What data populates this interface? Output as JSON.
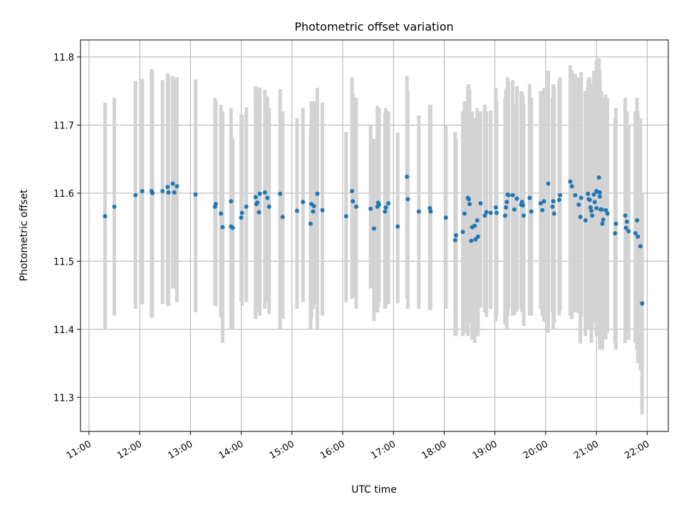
{
  "chart_data": {
    "type": "scatter",
    "title": "Photometric offset variation",
    "xlabel": "UTC time",
    "ylabel": "Photometric offset",
    "xlim": [
      "10:50",
      "22:25"
    ],
    "ylim": [
      11.25,
      11.825
    ],
    "x_ticks": [
      "11:00",
      "12:00",
      "13:00",
      "14:00",
      "15:00",
      "16:00",
      "17:00",
      "18:00",
      "19:00",
      "20:00",
      "21:00",
      "22:00"
    ],
    "y_ticks": [
      "11.3",
      "11.4",
      "11.5",
      "11.6",
      "11.7",
      "11.8"
    ],
    "grid": true,
    "colors": {
      "marker": "#1f77b4",
      "errorbar": "#d3d3d3",
      "grid": "#b0b0b0"
    },
    "x": [
      "11:19",
      "11:30",
      "11:55",
      "12:03",
      "12:14",
      "12:15",
      "12:27",
      "12:33",
      "12:34",
      "12:39",
      "12:41",
      "12:44",
      "13:06",
      "13:29",
      "13:30",
      "13:36",
      "13:38",
      "13:48",
      "13:48",
      "13:50",
      "14:00",
      "14:01",
      "14:06",
      "14:17",
      "14:18",
      "14:19",
      "14:21",
      "14:22",
      "14:28",
      "14:31",
      "14:33",
      "14:46",
      "14:49",
      "15:06",
      "15:13",
      "15:22",
      "15:23",
      "15:25",
      "15:26",
      "15:30",
      "15:36",
      "16:04",
      "16:11",
      "16:12",
      "16:16",
      "16:33",
      "16:37",
      "16:41",
      "16:42",
      "16:43",
      "16:50",
      "16:51",
      "16:54",
      "17:05",
      "17:16",
      "17:17",
      "17:30",
      "17:43",
      "17:44",
      "18:02",
      "18:13",
      "18:14",
      "18:22",
      "18:24",
      "18:28",
      "18:29",
      "18:30",
      "18:32",
      "18:33",
      "18:36",
      "18:37",
      "18:39",
      "18:40",
      "18:43",
      "18:48",
      "18:50",
      "18:55",
      "19:01",
      "19:02",
      "19:12",
      "19:13",
      "19:14",
      "19:15",
      "19:16",
      "19:21",
      "19:23",
      "19:26",
      "19:31",
      "19:32",
      "19:33",
      "19:34",
      "19:41",
      "19:43",
      "19:54",
      "19:56",
      "19:58",
      "20:03",
      "20:08",
      "20:09",
      "20:10",
      "20:16",
      "20:17",
      "20:29",
      "20:31",
      "20:35",
      "20:39",
      "20:41",
      "20:42",
      "20:47",
      "20:50",
      "20:51",
      "20:52",
      "20:53",
      "20:54",
      "20:55",
      "20:57",
      "20:58",
      "21:00",
      "21:00",
      "21:01",
      "21:03",
      "21:04",
      "21:04",
      "21:05",
      "21:06",
      "21:07",
      "21:08",
      "21:11",
      "21:13",
      "21:22",
      "21:23",
      "21:34",
      "21:35",
      "21:36",
      "21:38",
      "21:46",
      "21:48",
      "21:49",
      "21:52",
      "21:54"
    ],
    "y": [
      11.566,
      11.58,
      11.597,
      11.603,
      11.603,
      11.6,
      11.603,
      11.609,
      11.601,
      11.614,
      11.601,
      11.61,
      11.598,
      11.58,
      11.584,
      11.57,
      11.55,
      11.588,
      11.551,
      11.549,
      11.564,
      11.571,
      11.58,
      11.594,
      11.584,
      11.586,
      11.572,
      11.599,
      11.601,
      11.593,
      11.58,
      11.599,
      11.565,
      11.574,
      11.587,
      11.555,
      11.584,
      11.573,
      11.581,
      11.599,
      11.575,
      11.566,
      11.603,
      11.588,
      11.58,
      11.577,
      11.548,
      11.58,
      11.586,
      11.583,
      11.573,
      11.579,
      11.585,
      11.551,
      11.624,
      11.591,
      11.573,
      11.578,
      11.573,
      11.564,
      11.531,
      11.538,
      11.543,
      11.57,
      11.593,
      11.591,
      11.584,
      11.53,
      11.55,
      11.552,
      11.532,
      11.56,
      11.536,
      11.585,
      11.567,
      11.572,
      11.571,
      11.579,
      11.571,
      11.567,
      11.579,
      11.587,
      11.598,
      11.597,
      11.597,
      11.576,
      11.592,
      11.583,
      11.587,
      11.582,
      11.567,
      11.593,
      11.573,
      11.585,
      11.575,
      11.588,
      11.614,
      11.58,
      11.588,
      11.57,
      11.59,
      11.597,
      11.617,
      11.61,
      11.597,
      11.583,
      11.565,
      11.593,
      11.56,
      11.599,
      11.591,
      11.59,
      11.579,
      11.574,
      11.567,
      11.598,
      11.587,
      11.578,
      11.603,
      11.602,
      11.623,
      11.595,
      11.601,
      11.576,
      11.576,
      11.555,
      11.561,
      11.575,
      11.57,
      11.541,
      11.555,
      11.567,
      11.549,
      11.558,
      11.544,
      11.541,
      11.56,
      11.536,
      11.522,
      11.438
    ],
    "yerr_note": "",
    "errbar_low": [
      11.4,
      11.42,
      11.43,
      11.437,
      11.417,
      11.418,
      11.437,
      11.435,
      11.434,
      11.46,
      11.46,
      11.44,
      11.425,
      11.435,
      11.434,
      11.417,
      11.38,
      11.4,
      11.42,
      11.4,
      11.44,
      11.435,
      11.44,
      11.415,
      11.43,
      11.425,
      11.43,
      11.42,
      11.43,
      11.44,
      11.422,
      11.4,
      11.415,
      11.43,
      11.44,
      11.4,
      11.415,
      11.43,
      11.437,
      11.4,
      11.42,
      11.44,
      11.445,
      11.447,
      11.43,
      11.46,
      11.412,
      11.425,
      11.432,
      11.44,
      11.43,
      11.433,
      11.437,
      11.438,
      11.445,
      11.43,
      11.43,
      11.428,
      11.43,
      11.43,
      11.39,
      11.391,
      11.39,
      11.395,
      11.39,
      11.41,
      11.42,
      11.41,
      11.385,
      11.38,
      11.39,
      11.42,
      11.39,
      11.432,
      11.425,
      11.418,
      11.43,
      11.412,
      11.421,
      11.407,
      11.42,
      11.4,
      11.42,
      11.43,
      11.42,
      11.421,
      11.426,
      11.43,
      11.425,
      11.427,
      11.405,
      11.42,
      11.42,
      11.43,
      11.42,
      11.411,
      11.395,
      11.425,
      11.4,
      11.41,
      11.42,
      11.427,
      11.42,
      11.415,
      11.425,
      11.424,
      11.379,
      11.418,
      11.39,
      11.41,
      11.4,
      11.4,
      11.41,
      11.38,
      11.4,
      11.41,
      11.42,
      11.39,
      11.41,
      11.415,
      11.4,
      11.41,
      11.37,
      11.42,
      11.42,
      11.37,
      11.4,
      11.385,
      11.395,
      11.38,
      11.37,
      11.38,
      11.4,
      11.398,
      11.385,
      11.38,
      11.37,
      11.35,
      11.34,
      11.275
    ],
    "errbar_high": [
      11.733,
      11.74,
      11.765,
      11.768,
      11.782,
      11.78,
      11.766,
      11.776,
      11.773,
      11.772,
      11.765,
      11.77,
      11.767,
      11.74,
      11.735,
      11.73,
      11.72,
      11.725,
      11.69,
      11.68,
      11.715,
      11.715,
      11.726,
      11.757,
      11.755,
      11.75,
      11.725,
      11.755,
      11.752,
      11.742,
      11.725,
      11.753,
      11.72,
      11.71,
      11.725,
      11.695,
      11.735,
      11.735,
      11.735,
      11.755,
      11.733,
      11.69,
      11.77,
      11.745,
      11.74,
      11.7,
      11.68,
      11.728,
      11.722,
      11.725,
      11.717,
      11.725,
      11.72,
      11.689,
      11.772,
      11.75,
      11.714,
      11.73,
      11.73,
      11.7,
      11.69,
      11.68,
      11.72,
      11.735,
      11.757,
      11.76,
      11.753,
      11.69,
      11.72,
      11.71,
      11.68,
      11.725,
      11.68,
      11.72,
      11.73,
      11.72,
      11.721,
      11.755,
      11.735,
      11.74,
      11.752,
      11.755,
      11.77,
      11.764,
      11.766,
      11.73,
      11.757,
      11.75,
      11.748,
      11.744,
      11.73,
      11.76,
      11.74,
      11.75,
      11.75,
      11.755,
      11.78,
      11.74,
      11.76,
      11.756,
      11.765,
      11.77,
      11.788,
      11.78,
      11.775,
      11.77,
      11.74,
      11.778,
      11.75,
      11.765,
      11.77,
      11.77,
      11.76,
      11.755,
      11.74,
      11.78,
      11.77,
      11.76,
      11.795,
      11.79,
      11.798,
      11.77,
      11.78,
      11.74,
      11.75,
      11.735,
      11.74,
      11.745,
      11.74,
      11.71,
      11.725,
      11.74,
      11.713,
      11.72,
      11.7,
      11.72,
      11.74,
      11.72,
      11.71,
      11.6
    ]
  }
}
